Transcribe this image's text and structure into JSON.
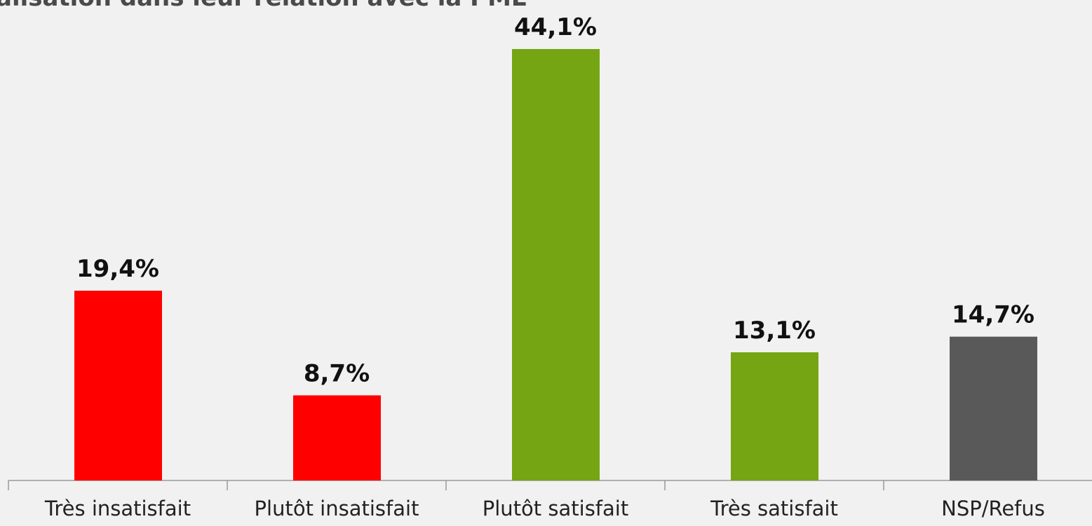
{
  "chart_data": {
    "type": "bar",
    "title": "alisation dans leur relation avec la PME",
    "categories": [
      "Très insatisfait",
      "Plutôt insatisfait",
      "Plutôt satisfait",
      "Très satisfait",
      "NSP/Refus"
    ],
    "values": [
      19.4,
      8.7,
      44.1,
      13.1,
      14.7
    ],
    "value_labels": [
      "19,4%",
      "8,7%",
      "44,1%",
      "13,1%",
      "14,7%"
    ],
    "colors": [
      "#ff0000",
      "#ff0000",
      "#76a513",
      "#76a513",
      "#595959"
    ]
  }
}
